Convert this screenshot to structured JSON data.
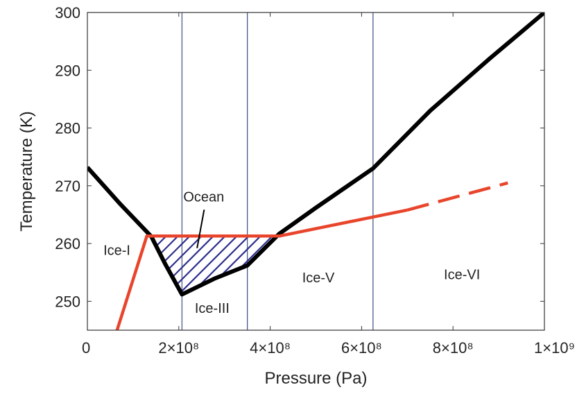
{
  "chart_data": {
    "type": "line",
    "xlabel": "Pressure (Pa)",
    "ylabel": "Temperature (K)",
    "xlim": [
      0,
      1000000000
    ],
    "ylim": [
      245,
      300
    ],
    "x_ticks": [
      {
        "value": 0,
        "label": "0"
      },
      {
        "value": 200000000,
        "label": "2×10⁸"
      },
      {
        "value": 400000000,
        "label": "4×10⁸"
      },
      {
        "value": 600000000,
        "label": "6×10⁸"
      },
      {
        "value": 800000000,
        "label": "8×10⁸"
      },
      {
        "value": 1000000000,
        "label": "1×10⁹"
      }
    ],
    "y_ticks": [
      {
        "value": 250,
        "label": "250"
      },
      {
        "value": 260,
        "label": "260"
      },
      {
        "value": 270,
        "label": "270"
      },
      {
        "value": 280,
        "label": "280"
      },
      {
        "value": 290,
        "label": "290"
      },
      {
        "value": 300,
        "label": "300"
      }
    ],
    "phase_boundaries": [
      207000000,
      350000000,
      625000000
    ],
    "series": [
      {
        "color": "#000000",
        "style": "solid",
        "points": [
          [
            0,
            273.2
          ],
          [
            70000000,
            267
          ],
          [
            140000000,
            261.2
          ],
          [
            170000000,
            256.5
          ],
          [
            207000000,
            251.2
          ],
          [
            280000000,
            254
          ],
          [
            350000000,
            256.2
          ],
          [
            420000000,
            261.7
          ],
          [
            500000000,
            266.2
          ],
          [
            625000000,
            273
          ],
          [
            750000000,
            283
          ],
          [
            880000000,
            292
          ],
          [
            1000000000,
            300
          ]
        ]
      },
      {
        "color": "#e8452c",
        "style": "solid",
        "points": [
          [
            65000000,
            245
          ],
          [
            130000000,
            261.3
          ],
          [
            420000000,
            261.3
          ],
          [
            700000000,
            265.8
          ]
        ]
      },
      {
        "color": "#e8452c",
        "style": "dashed",
        "points": [
          [
            700000000,
            265.8
          ],
          [
            920000000,
            270.5
          ]
        ]
      }
    ],
    "ocean_region": {
      "color": "#2c2d8c",
      "polygon": [
        [
          140000000,
          261.2
        ],
        [
          420000000,
          261.3
        ],
        [
          350000000,
          256.2
        ],
        [
          280000000,
          254
        ],
        [
          207000000,
          251.2
        ],
        [
          170000000,
          256.5
        ]
      ]
    },
    "annotations": [
      {
        "text": "Ocean",
        "x": 210000000,
        "y": 267.3,
        "arrow_to": [
          240000000,
          259.2
        ]
      },
      {
        "text": "Ice-I",
        "x": 35000000,
        "y": 258
      },
      {
        "text": "Ice-III",
        "x": 235000000,
        "y": 248
      },
      {
        "text": "Ice-V",
        "x": 470000000,
        "y": 253.3
      },
      {
        "text": "Ice-VI",
        "x": 780000000,
        "y": 253.8
      }
    ]
  }
}
